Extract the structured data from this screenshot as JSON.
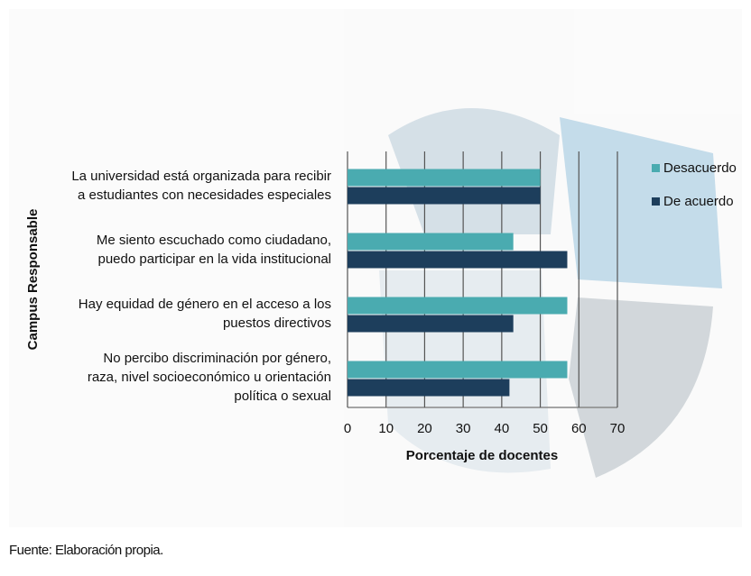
{
  "chart_data": {
    "type": "hbar",
    "categories": [
      "La universidad está organizada para recibir\na estudiantes con necesidades especiales",
      "Me siento escuchado como ciudadano,\npuedo participar en la vida institucional",
      "Hay equidad de género en el acceso a los\npuestos directivos",
      "No percibo discriminación por género,\nraza, nivel socioeconómico u orientación\npolítica o sexual"
    ],
    "series": [
      {
        "name": "Desacuerdo",
        "color": "#4aabb0",
        "values": [
          50,
          43,
          57,
          57
        ]
      },
      {
        "name": "De acuerdo",
        "color": "#1d3e5c",
        "values": [
          50,
          57,
          43,
          42
        ]
      }
    ],
    "xlim": [
      0,
      70
    ],
    "xticks": [
      0,
      10,
      20,
      30,
      40,
      50,
      60,
      70
    ],
    "xlabel": "Porcentaje de docentes",
    "ylabel": "Campus Responsable",
    "grid": true,
    "legend": "right",
    "source": "Fuente: Elaboración propia."
  }
}
